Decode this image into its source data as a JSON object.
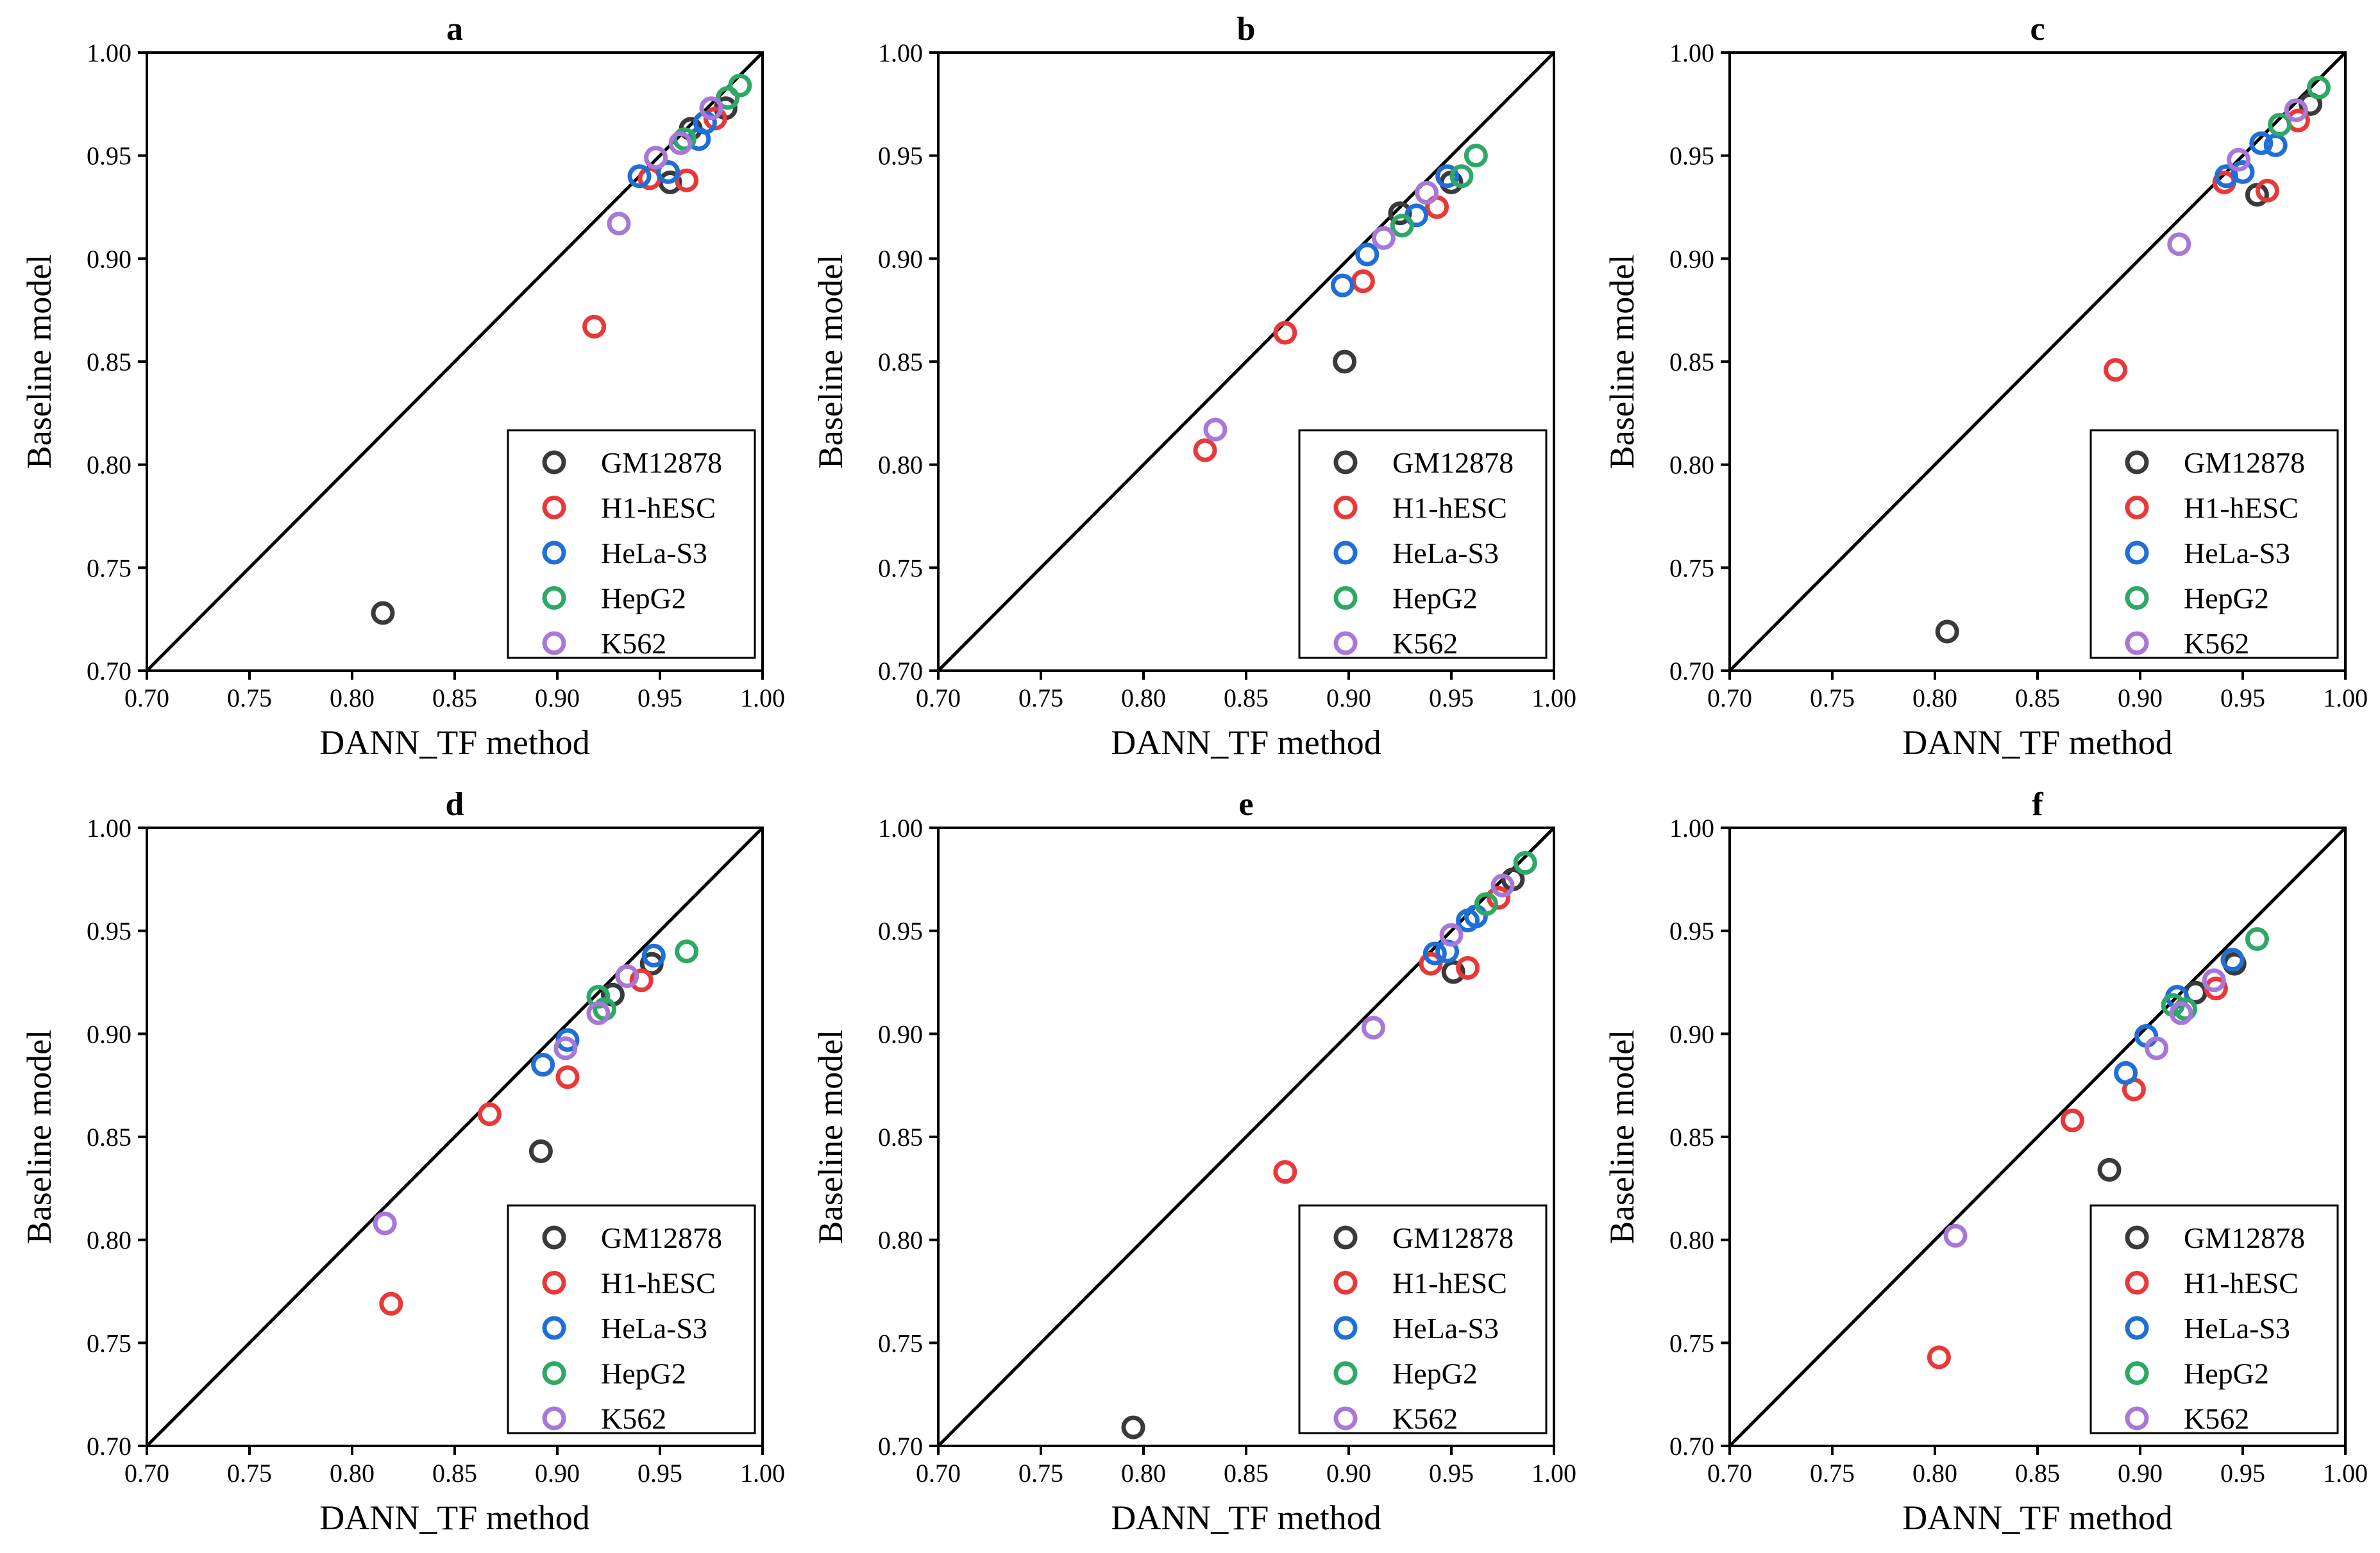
{
  "figure": {
    "panel_labels": [
      "a",
      "b",
      "c",
      "d",
      "e",
      "f"
    ]
  },
  "legend": [
    {
      "name": "GM12878",
      "color": "#3a3a3a"
    },
    {
      "name": "H1-hESC",
      "color": "#e8393a"
    },
    {
      "name": "HeLa-S3",
      "color": "#1f6fd6"
    },
    {
      "name": "HepG2",
      "color": "#2ea866"
    },
    {
      "name": "K562",
      "color": "#a878d8"
    }
  ],
  "chart_data": [
    {
      "panel": "a",
      "type": "scatter",
      "xlabel": "DANN_TF method",
      "ylabel": "Baseline model",
      "xlim": [
        0.7,
        1.0
      ],
      "ylim": [
        0.7,
        1.0
      ],
      "xticks": [
        "0.70",
        "0.75",
        "0.80",
        "0.85",
        "0.90",
        "0.95",
        "1.00"
      ],
      "yticks": [
        "0.70",
        "0.75",
        "0.80",
        "0.85",
        "0.90",
        "0.95",
        "1.00"
      ],
      "diagonal": true,
      "series": [
        {
          "name": "GM12878",
          "points": [
            [
              0.815,
              0.728
            ],
            [
              0.955,
              0.937
            ],
            [
              0.965,
              0.963
            ],
            [
              0.982,
              0.973
            ]
          ]
        },
        {
          "name": "H1-hESC",
          "points": [
            [
              0.918,
              0.867
            ],
            [
              0.945,
              0.939
            ],
            [
              0.963,
              0.938
            ],
            [
              0.977,
              0.968
            ]
          ]
        },
        {
          "name": "HeLa-S3",
          "points": [
            [
              0.94,
              0.94
            ],
            [
              0.954,
              0.942
            ],
            [
              0.969,
              0.958
            ],
            [
              0.972,
              0.966
            ]
          ]
        },
        {
          "name": "HepG2",
          "points": [
            [
              0.962,
              0.958
            ],
            [
              0.983,
              0.978
            ],
            [
              0.989,
              0.984
            ]
          ]
        },
        {
          "name": "K562",
          "points": [
            [
              0.93,
              0.917
            ],
            [
              0.948,
              0.949
            ],
            [
              0.96,
              0.956
            ],
            [
              0.975,
              0.973
            ]
          ]
        }
      ]
    },
    {
      "panel": "b",
      "type": "scatter",
      "xlabel": "DANN_TF method",
      "ylabel": "Baseline model",
      "xlim": [
        0.7,
        1.0
      ],
      "ylim": [
        0.7,
        1.0
      ],
      "xticks": [
        "0.70",
        "0.75",
        "0.80",
        "0.85",
        "0.90",
        "0.95",
        "1.00"
      ],
      "yticks": [
        "0.70",
        "0.75",
        "0.80",
        "0.85",
        "0.90",
        "0.95",
        "1.00"
      ],
      "diagonal": true,
      "series": [
        {
          "name": "GM12878",
          "points": [
            [
              0.898,
              0.85
            ],
            [
              0.925,
              0.922
            ],
            [
              0.95,
              0.937
            ]
          ]
        },
        {
          "name": "H1-hESC",
          "points": [
            [
              0.83,
              0.807
            ],
            [
              0.869,
              0.864
            ],
            [
              0.907,
              0.889
            ],
            [
              0.943,
              0.925
            ]
          ]
        },
        {
          "name": "HeLa-S3",
          "points": [
            [
              0.897,
              0.887
            ],
            [
              0.909,
              0.902
            ],
            [
              0.933,
              0.921
            ],
            [
              0.948,
              0.94
            ]
          ]
        },
        {
          "name": "HepG2",
          "points": [
            [
              0.926,
              0.916
            ],
            [
              0.955,
              0.94
            ],
            [
              0.962,
              0.95
            ]
          ]
        },
        {
          "name": "K562",
          "points": [
            [
              0.835,
              0.817
            ],
            [
              0.917,
              0.91
            ],
            [
              0.938,
              0.932
            ]
          ]
        }
      ]
    },
    {
      "panel": "c",
      "type": "scatter",
      "xlabel": "DANN_TF method",
      "ylabel": "Baseline model",
      "xlim": [
        0.7,
        1.0
      ],
      "ylim": [
        0.7,
        1.0
      ],
      "xticks": [
        "0.70",
        "0.75",
        "0.80",
        "0.85",
        "0.90",
        "0.95",
        "1.00"
      ],
      "yticks": [
        "0.70",
        "0.75",
        "0.80",
        "0.85",
        "0.90",
        "0.95",
        "1.00"
      ],
      "diagonal": true,
      "series": [
        {
          "name": "GM12878",
          "points": [
            [
              0.806,
              0.719
            ],
            [
              0.957,
              0.931
            ],
            [
              0.983,
              0.975
            ]
          ]
        },
        {
          "name": "H1-hESC",
          "points": [
            [
              0.888,
              0.846
            ],
            [
              0.941,
              0.937
            ],
            [
              0.962,
              0.933
            ],
            [
              0.977,
              0.967
            ]
          ]
        },
        {
          "name": "HeLa-S3",
          "points": [
            [
              0.942,
              0.94
            ],
            [
              0.95,
              0.942
            ],
            [
              0.959,
              0.956
            ],
            [
              0.966,
              0.955
            ]
          ]
        },
        {
          "name": "HepG2",
          "points": [
            [
              0.968,
              0.965
            ],
            [
              0.987,
              0.983
            ]
          ]
        },
        {
          "name": "K562",
          "points": [
            [
              0.919,
              0.907
            ],
            [
              0.948,
              0.948
            ],
            [
              0.976,
              0.972
            ]
          ]
        }
      ]
    },
    {
      "panel": "d",
      "type": "scatter",
      "xlabel": "DANN_TF method",
      "ylabel": "Baseline model",
      "xlim": [
        0.7,
        1.0
      ],
      "ylim": [
        0.7,
        1.0
      ],
      "xticks": [
        "0.70",
        "0.75",
        "0.80",
        "0.85",
        "0.90",
        "0.95",
        "1.00"
      ],
      "yticks": [
        "0.70",
        "0.75",
        "0.80",
        "0.85",
        "0.90",
        "0.95",
        "1.00"
      ],
      "diagonal": true,
      "series": [
        {
          "name": "GM12878",
          "points": [
            [
              0.892,
              0.843
            ],
            [
              0.927,
              0.919
            ],
            [
              0.946,
              0.934
            ]
          ]
        },
        {
          "name": "H1-hESC",
          "points": [
            [
              0.819,
              0.769
            ],
            [
              0.867,
              0.861
            ],
            [
              0.905,
              0.879
            ],
            [
              0.941,
              0.926
            ]
          ]
        },
        {
          "name": "HeLa-S3",
          "points": [
            [
              0.893,
              0.885
            ],
            [
              0.905,
              0.897
            ],
            [
              0.947,
              0.938
            ]
          ]
        },
        {
          "name": "HepG2",
          "points": [
            [
              0.92,
              0.918
            ],
            [
              0.923,
              0.912
            ],
            [
              0.963,
              0.94
            ]
          ]
        },
        {
          "name": "K562",
          "points": [
            [
              0.816,
              0.808
            ],
            [
              0.904,
              0.893
            ],
            [
              0.92,
              0.91
            ],
            [
              0.934,
              0.928
            ]
          ]
        }
      ]
    },
    {
      "panel": "e",
      "type": "scatter",
      "xlabel": "DANN_TF method",
      "ylabel": "Baseline model",
      "xlim": [
        0.7,
        1.0
      ],
      "ylim": [
        0.7,
        1.0
      ],
      "xticks": [
        "0.70",
        "0.75",
        "0.80",
        "0.85",
        "0.90",
        "0.95",
        "1.00"
      ],
      "yticks": [
        "0.70",
        "0.75",
        "0.80",
        "0.85",
        "0.90",
        "0.95",
        "1.00"
      ],
      "diagonal": true,
      "series": [
        {
          "name": "GM12878",
          "points": [
            [
              0.795,
              0.709
            ],
            [
              0.951,
              0.93
            ],
            [
              0.98,
              0.975
            ]
          ]
        },
        {
          "name": "H1-hESC",
          "points": [
            [
              0.869,
              0.833
            ],
            [
              0.94,
              0.934
            ],
            [
              0.958,
              0.932
            ],
            [
              0.973,
              0.966
            ]
          ]
        },
        {
          "name": "HeLa-S3",
          "points": [
            [
              0.942,
              0.939
            ],
            [
              0.948,
              0.94
            ],
            [
              0.958,
              0.955
            ],
            [
              0.962,
              0.957
            ]
          ]
        },
        {
          "name": "HepG2",
          "points": [
            [
              0.967,
              0.963
            ],
            [
              0.986,
              0.983
            ]
          ]
        },
        {
          "name": "K562",
          "points": [
            [
              0.912,
              0.903
            ],
            [
              0.95,
              0.948
            ],
            [
              0.975,
              0.972
            ]
          ]
        }
      ]
    },
    {
      "panel": "f",
      "type": "scatter",
      "xlabel": "DANN_TF method",
      "ylabel": "Baseline model",
      "xlim": [
        0.7,
        1.0
      ],
      "ylim": [
        0.7,
        1.0
      ],
      "xticks": [
        "0.70",
        "0.75",
        "0.80",
        "0.85",
        "0.90",
        "0.95",
        "1.00"
      ],
      "yticks": [
        "0.70",
        "0.75",
        "0.80",
        "0.85",
        "0.90",
        "0.95",
        "1.00"
      ],
      "diagonal": true,
      "series": [
        {
          "name": "GM12878",
          "points": [
            [
              0.885,
              0.834
            ],
            [
              0.927,
              0.92
            ],
            [
              0.946,
              0.934
            ]
          ]
        },
        {
          "name": "H1-hESC",
          "points": [
            [
              0.802,
              0.743
            ],
            [
              0.867,
              0.858
            ],
            [
              0.897,
              0.873
            ],
            [
              0.937,
              0.922
            ]
          ]
        },
        {
          "name": "HeLa-S3",
          "points": [
            [
              0.893,
              0.881
            ],
            [
              0.903,
              0.899
            ],
            [
              0.918,
              0.918
            ],
            [
              0.945,
              0.936
            ]
          ]
        },
        {
          "name": "HepG2",
          "points": [
            [
              0.916,
              0.914
            ],
            [
              0.922,
              0.912
            ],
            [
              0.957,
              0.946
            ]
          ]
        },
        {
          "name": "K562",
          "points": [
            [
              0.81,
              0.802
            ],
            [
              0.908,
              0.893
            ],
            [
              0.92,
              0.91
            ],
            [
              0.936,
              0.926
            ]
          ]
        }
      ]
    }
  ]
}
